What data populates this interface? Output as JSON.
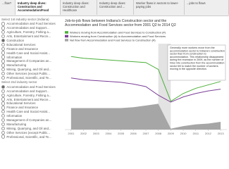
{
  "tabs": [
    "...flow?",
    "Industry deep dives: Construction and Accommodation/Food",
    "Industry deep dives: Construction and Healthcare",
    "Industry deep dives: Construction and ...",
    "Worker flows in sectors to lower-paying jobs",
    "...jobs to flows"
  ],
  "active_tab": 1,
  "sidebar": {
    "first_heading": "Select 1st industry sector (Indiana)",
    "first_items": [
      "Accommodation and Food Services",
      "Accommodation and Support...",
      "Agriculture, Forestry, Fishing a...",
      "Arts, Entertainment and Recre...",
      "Construction",
      "Educational Services",
      "Finance and Insurance",
      "Health Care and Social Assist...",
      "Information",
      "Management of Companies an...",
      "Manufacturing",
      "Mining, Quarrying, and Oil and...",
      "Other Services (except Public...",
      "Professional, Scientific, and Te..."
    ],
    "first_selected": 4,
    "second_heading": "Select 2nd industry sector",
    "second_items": [
      "Accommodation and Food Services",
      "Accommodation and Support...",
      "Agriculture, Forestry, Fishing a...",
      "Arts, Entertainment and Recre...",
      "Educational Services",
      "Finance and Insurance",
      "Health Care and Social Assist...",
      "Information",
      "Management of Companies an...",
      "Manufacturing",
      "Mining, Quarrying, and Oil and...",
      "Other Services (except Public...",
      "Professional, Scientific, and Te..."
    ],
    "second_selected": 0
  },
  "chart_data": {
    "type": "line",
    "title": "Job-to-job flows between Indiana's Construction sector and the Accommodation and Food Services sector from 2001 Q2 to 2014 Q2",
    "annotation": "Generally more workers move from the accommodation sector to Indiana's construction sector than from construction to accommodation. This relationship disappeared during the recession in 2009, as the number of hires into construction from the accommodation sector fell to match the number of workers moving in the opposite direction.",
    "x": [
      2001,
      2002,
      2003,
      2004,
      2005,
      2006,
      2007,
      2008,
      2009,
      2010,
      2011,
      2012,
      2013
    ],
    "xlim": [
      2000.5,
      2013.5
    ],
    "xticks": [
      2001,
      2002,
      2003,
      2004,
      2005,
      2006,
      2007,
      2008,
      2009,
      2010,
      2011,
      2012,
      2013
    ],
    "ylim": [
      0,
      1000
    ],
    "shaded_range": [
      2008,
      2009
    ],
    "series": [
      {
        "name": "Workers moving from Accommodation and Food Services to Construction (#)",
        "color": "#4caf3a",
        "style": "line",
        "values": [
          850,
          830,
          820,
          810,
          800,
          790,
          780,
          700,
          330,
          420,
          480,
          520,
          560
        ]
      },
      {
        "name": "Workers moving from Construction (#) to Accommodation and Food Services",
        "color": "#7b3f98",
        "style": "line",
        "values": [
          600,
          580,
          570,
          560,
          550,
          530,
          500,
          400,
          320,
          380,
          420,
          450,
          470
        ]
      },
      {
        "name": "Net flow from Accommodation and Food Services to Construction (#)",
        "color": "#a6a6a6",
        "style": "area",
        "values": [
          250,
          250,
          250,
          250,
          250,
          260,
          280,
          300,
          10,
          40,
          60,
          70,
          90
        ]
      }
    ]
  }
}
